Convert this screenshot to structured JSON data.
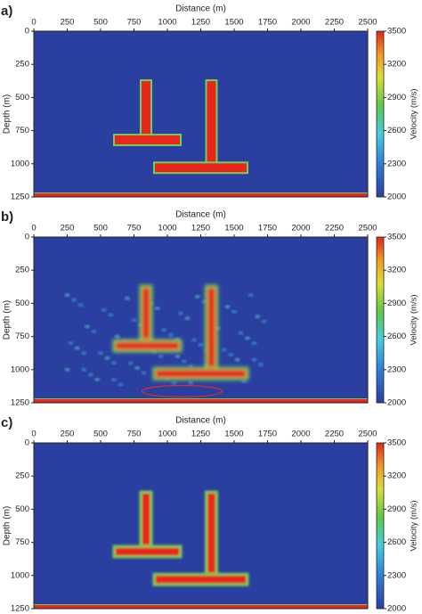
{
  "chart_data": [
    {
      "type": "heatmap",
      "panel_label": "a)",
      "xlabel": "Distance (m)",
      "ylabel": "Depth (m)",
      "colorbar_label": "Velocity (m/s)",
      "xlim": [
        0,
        2500
      ],
      "xticks": [
        0,
        250,
        500,
        750,
        1000,
        1250,
        1500,
        1750,
        2000,
        2250,
        2500
      ],
      "ylim": [
        0,
        1250
      ],
      "yticks": [
        0,
        250,
        500,
        750,
        1000,
        1250
      ],
      "clim": [
        2000,
        3500
      ],
      "cticks": [
        2000,
        2300,
        2600,
        2900,
        3200,
        3500
      ]
    },
    {
      "type": "heatmap",
      "panel_label": "b)",
      "xlabel": "Distance (m)",
      "ylabel": "Depth (m)",
      "colorbar_label": "Velocity (m/s)",
      "xlim": [
        0,
        2500
      ],
      "xticks": [
        0,
        250,
        500,
        750,
        1000,
        1250,
        1500,
        1750,
        2000,
        2250,
        2500
      ],
      "ylim": [
        0,
        1250
      ],
      "yticks": [
        0,
        250,
        500,
        750,
        1000,
        1250
      ],
      "clim": [
        2000,
        3500
      ],
      "cticks": [
        2000,
        2300,
        2600,
        2900,
        3200,
        3500
      ]
    },
    {
      "type": "heatmap",
      "panel_label": "c)",
      "xlabel": "Distance (m)",
      "ylabel": "Depth (m)",
      "colorbar_label": "Velocity (m/s)",
      "xlim": [
        0,
        2500
      ],
      "xticks": [
        0,
        250,
        500,
        750,
        1000,
        1250,
        1500,
        1750,
        2000,
        2250,
        2500
      ],
      "ylim": [
        0,
        1250
      ],
      "yticks": [
        0,
        250,
        500,
        750,
        1000,
        1250
      ],
      "clim": [
        2000,
        3500
      ],
      "cticks": [
        2000,
        2300,
        2600,
        2900,
        3200,
        3500
      ]
    }
  ]
}
